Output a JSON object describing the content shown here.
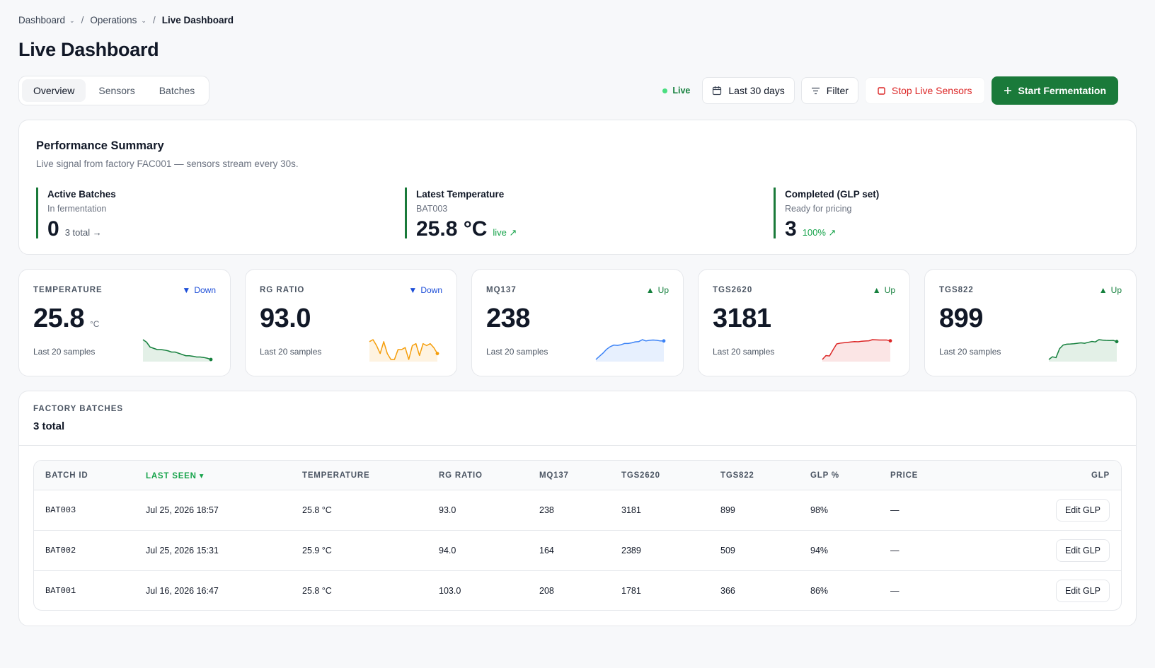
{
  "breadcrumb": [
    {
      "label": "Dashboard",
      "dropdown": true
    },
    {
      "label": "Operations",
      "dropdown": true
    },
    {
      "label": "Live Dashboard",
      "dropdown": false
    }
  ],
  "page_title": "Live Dashboard",
  "tabs": [
    {
      "label": "Overview",
      "active": true
    },
    {
      "label": "Sensors",
      "active": false
    },
    {
      "label": "Batches",
      "active": false
    }
  ],
  "toolbar": {
    "live_label": "Live",
    "date_range": "Last 30 days",
    "filter_label": "Filter",
    "stop_label": "Stop Live Sensors",
    "start_label": "Start Fermentation"
  },
  "performance": {
    "title": "Performance Summary",
    "subtitle": "Live signal from factory FAC001 — sensors stream every 30s.",
    "metrics": [
      {
        "title": "Active Batches",
        "sub": "In fermentation",
        "value": "0",
        "note": "3 total →"
      },
      {
        "title": "Latest Temperature",
        "sub": "BAT003",
        "value": "25.8 °C",
        "note": "live ↗"
      },
      {
        "title": "Completed (GLP set)",
        "sub": "Ready for pricing",
        "value": "3",
        "note": "100% ↗"
      }
    ]
  },
  "sensors": [
    {
      "label": "TEMPERATURE",
      "trend": "Down",
      "value": "25.8",
      "unit": "°C",
      "footer": "Last 20 samples",
      "color": "#15803d",
      "samples": [
        26.6,
        26.5,
        26.3,
        26.25,
        26.2,
        26.2,
        26.18,
        26.15,
        26.1,
        26.1,
        26.05,
        26.0,
        25.95,
        25.95,
        25.93,
        25.9,
        25.9,
        25.88,
        25.85,
        25.8
      ]
    },
    {
      "label": "RG RATIO",
      "trend": "Down",
      "value": "93.0",
      "unit": "",
      "footer": "Last 20 samples",
      "color": "#f59e0b",
      "samples": [
        99,
        100,
        97,
        93,
        99,
        93,
        90,
        90,
        95,
        95,
        96,
        90,
        97,
        98,
        92,
        98,
        97,
        98,
        96,
        93
      ]
    },
    {
      "label": "MQ137",
      "trend": "Up",
      "value": "238",
      "unit": "",
      "footer": "Last 20 samples",
      "color": "#3b82f6",
      "samples": [
        180,
        190,
        200,
        212,
        220,
        225,
        224,
        226,
        230,
        230,
        232,
        235,
        236,
        242,
        238,
        240,
        241,
        240,
        238,
        238
      ]
    },
    {
      "label": "TGS2620",
      "trend": "Up",
      "value": "3181",
      "unit": "",
      "footer": "Last 20 samples",
      "color": "#dc2626",
      "samples": [
        2700,
        2800,
        2790,
        2950,
        3100,
        3120,
        3130,
        3140,
        3150,
        3160,
        3155,
        3170,
        3175,
        3180,
        3210,
        3205,
        3200,
        3200,
        3200,
        3181
      ]
    },
    {
      "label": "TGS822",
      "trend": "Up",
      "value": "899",
      "unit": "",
      "footer": "Last 20 samples",
      "color": "#15803d",
      "samples": [
        700,
        730,
        720,
        820,
        860,
        870,
        872,
        875,
        880,
        885,
        880,
        890,
        900,
        895,
        920,
        915,
        912,
        910,
        912,
        899
      ]
    }
  ],
  "batches": {
    "section_label": "FACTORY BATCHES",
    "count_label": "3 total",
    "columns": [
      "BATCH ID",
      "LAST SEEN ▾",
      "TEMPERATURE",
      "RG RATIO",
      "MQ137",
      "TGS2620",
      "TGS822",
      "GLP %",
      "PRICE",
      "GLP"
    ],
    "sorted_column": "LAST SEEN",
    "rows": [
      {
        "id": "BAT003",
        "last_seen": "Jul 25, 2026 18:57",
        "temperature": "25.8 °C",
        "rg_ratio": "93.0",
        "mq137": "238",
        "tgs2620": "3181",
        "tgs822": "899",
        "glp_pct": "98%",
        "price": "—",
        "action": "Edit GLP"
      },
      {
        "id": "BAT002",
        "last_seen": "Jul 25, 2026 15:31",
        "temperature": "25.9 °C",
        "rg_ratio": "94.0",
        "mq137": "164",
        "tgs2620": "2389",
        "tgs822": "509",
        "glp_pct": "94%",
        "price": "—",
        "action": "Edit GLP"
      },
      {
        "id": "BAT001",
        "last_seen": "Jul 16, 2026 16:47",
        "temperature": "25.8 °C",
        "rg_ratio": "103.0",
        "mq137": "208",
        "tgs2620": "1781",
        "tgs822": "366",
        "glp_pct": "86%",
        "price": "—",
        "action": "Edit GLP"
      }
    ]
  }
}
